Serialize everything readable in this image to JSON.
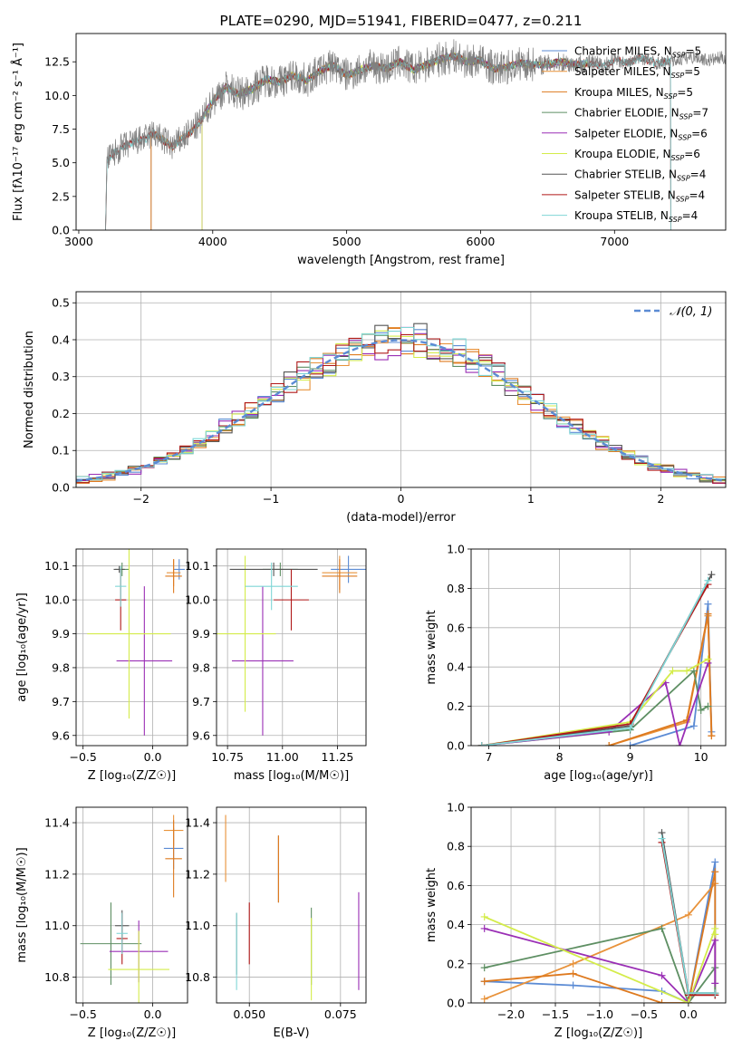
{
  "chart_data": [
    {
      "id": "spectrum",
      "type": "line",
      "title": "PLATE=0290, MJD=51941, FIBERID=0477, z=0.211",
      "xlabel": "wavelength [Angstrom, rest frame]",
      "ylabel": "Flux [fλ10⁻¹⁷ erg cm⁻² s⁻¹ Å⁻¹]",
      "xlim": [
        2980,
        7830
      ],
      "ylim": [
        0,
        14.6
      ],
      "xticks": [
        3000,
        4000,
        5000,
        6000,
        7000
      ],
      "yticks": [
        0.0,
        2.5,
        5.0,
        7.5,
        10.0,
        12.5
      ],
      "grid": false,
      "legend_position": "right",
      "data_series": {
        "name": "data",
        "color": "#808080",
        "x": [
          3200,
          3210,
          3300,
          3400,
          3500,
          3560,
          3700,
          3800,
          3900,
          4000,
          4100,
          4200,
          4300,
          4400,
          4500,
          4600,
          4700,
          4800,
          4900,
          5000,
          5100,
          5200,
          5300,
          5400,
          5500,
          5600,
          5700,
          5800,
          5900,
          6000,
          6100,
          6200,
          6300,
          6400,
          6500,
          6600,
          6700,
          6800,
          6900,
          7000,
          7100,
          7200,
          7300,
          7400,
          7500,
          7600,
          7700,
          7800
        ],
        "y": [
          0,
          5.2,
          6.0,
          6.5,
          6.8,
          7.2,
          6.2,
          7.0,
          7.9,
          9.6,
          10.6,
          10.1,
          10.5,
          11.2,
          11.0,
          11.5,
          11.1,
          11.8,
          12.3,
          11.5,
          11.9,
          12.2,
          12.0,
          12.5,
          11.9,
          12.3,
          12.7,
          12.9,
          12.5,
          12.6,
          12.0,
          12.1,
          12.4,
          12.3,
          12.3,
          12.5,
          12.3,
          12.4,
          12.2,
          12.6,
          12.4,
          12.8,
          12.4,
          12.5,
          12.7,
          12.9,
          12.6,
          12.8
        ]
      },
      "series": [
        {
          "name": "Chabrier MILES, N$_{SSP}$=5",
          "label_base": "Chabrier MILES, N",
          "label_n": "=5",
          "color": "#5b8bd4"
        },
        {
          "name": "Salpeter MILES, N$_{SSP}$=5",
          "label_base": "Salpeter MILES, N",
          "label_n": "=5",
          "color": "#e8923a"
        },
        {
          "name": "Kroupa MILES, N$_{SSP}$=5",
          "label_base": "Kroupa MILES, N",
          "label_n": "=5",
          "color": "#de7a1f"
        },
        {
          "name": "Chabrier ELODIE, N$_{SSP}$=7",
          "label_base": "Chabrier ELODIE, N",
          "label_n": "=7",
          "color": "#5e8f63"
        },
        {
          "name": "Salpeter ELODIE, N$_{SSP}$=6",
          "label_base": "Salpeter ELODIE, N",
          "label_n": "=6",
          "color": "#9a2fb5"
        },
        {
          "name": "Kroupa ELODIE, N$_{SSP}$=6",
          "label_base": "Kroupa ELODIE, N",
          "label_n": "=6",
          "color": "#d4ec4a"
        },
        {
          "name": "Chabrier STELIB, N$_{SSP}$=4",
          "label_base": "Chabrier STELIB, N",
          "label_n": "=4",
          "color": "#555555"
        },
        {
          "name": "Salpeter STELIB, N$_{SSP}$=4",
          "label_base": "Salpeter STELIB, N",
          "label_n": "=4",
          "color": "#b01818"
        },
        {
          "name": "Kroupa STELIB, N$_{SSP}$=4",
          "label_base": "Kroupa STELIB, N",
          "label_n": "=4",
          "color": "#7fd6d6"
        }
      ],
      "model_start_wavelength": [
        3540,
        3540,
        3540,
        3920,
        3920,
        3920,
        3200,
        3200,
        3200
      ],
      "model_end_wavelength": [
        6800,
        6800,
        6800,
        6800,
        6800,
        6800,
        7420,
        7420,
        7420
      ]
    },
    {
      "id": "residuals",
      "type": "step-histogram",
      "xlabel": "(data-model)/error",
      "ylabel": "Normed distribution",
      "xlim": [
        -2.5,
        2.5
      ],
      "ylim": [
        0,
        0.53
      ],
      "xticks": [
        -2,
        -1,
        0,
        1,
        2
      ],
      "yticks": [
        0.0,
        0.1,
        0.2,
        0.3,
        0.4,
        0.5
      ],
      "grid": true,
      "legend_position": "top-right",
      "reference": {
        "name": "𝒩(0, 1)",
        "style": "dashed",
        "color": "#5b8bd4"
      },
      "bin_width": 0.1
    },
    {
      "id": "age-vs-Z",
      "type": "errorbar",
      "xlabel": "Z [log₁₀(Z/Z☉)]",
      "ylabel": "age  [log₁₀(age/yr)]",
      "xlim": [
        -0.55,
        0.25
      ],
      "ylim": [
        9.57,
        10.15
      ],
      "xticks": [
        -0.5,
        0.0
      ],
      "yticks": [
        9.6,
        9.7,
        9.8,
        9.9,
        10.0,
        10.1
      ],
      "grid": true,
      "points": [
        {
          "series": 0,
          "x": 0.19,
          "xerr": 0.04,
          "y": 10.09,
          "yerr": 0.03
        },
        {
          "series": 1,
          "x": 0.15,
          "xerr": 0.05,
          "y": 10.08,
          "yerr": 0.04
        },
        {
          "series": 2,
          "x": 0.15,
          "xerr": 0.06,
          "y": 10.07,
          "yerr": 0.05
        },
        {
          "series": 3,
          "x": -0.22,
          "xerr": 0.05,
          "y": 10.09,
          "yerr": 0.02
        },
        {
          "series": 4,
          "x": -0.06,
          "xerr": 0.2,
          "y": 9.82,
          "yerr": 0.22
        },
        {
          "series": 5,
          "x": -0.17,
          "xerr": 0.3,
          "y": 9.9,
          "yerr": 0.25
        },
        {
          "series": 6,
          "x": -0.24,
          "xerr": 0.04,
          "y": 10.09,
          "yerr": 0.01
        },
        {
          "series": 7,
          "x": -0.23,
          "xerr": 0.04,
          "y": 10.0,
          "yerr": 0.09
        },
        {
          "series": 8,
          "x": -0.23,
          "xerr": 0.04,
          "y": 10.04,
          "yerr": 0.06
        }
      ]
    },
    {
      "id": "age-vs-mass",
      "type": "errorbar",
      "xlabel": "mass [log₁₀(M/M☉)]",
      "ylabel": "",
      "xlim": [
        10.7,
        11.38
      ],
      "ylim": [
        9.57,
        10.15
      ],
      "xticks": [
        10.75,
        11.0,
        11.25
      ],
      "yticks": [
        9.6,
        9.7,
        9.8,
        9.9,
        10.0,
        10.1
      ],
      "grid": true,
      "points": [
        {
          "series": 0,
          "x": 11.3,
          "xerr": 0.08,
          "y": 10.09,
          "yerr": 0.04
        },
        {
          "series": 1,
          "x": 11.26,
          "xerr": 0.08,
          "y": 10.08,
          "yerr": 0.05
        },
        {
          "series": 2,
          "x": 11.26,
          "xerr": 0.08,
          "y": 10.07,
          "yerr": 0.05
        },
        {
          "series": 3,
          "x": 10.99,
          "xerr": 0.08,
          "y": 10.09,
          "yerr": 0.02
        },
        {
          "series": 4,
          "x": 10.91,
          "xerr": 0.14,
          "y": 9.82,
          "yerr": 0.22
        },
        {
          "series": 5,
          "x": 10.83,
          "xerr": 0.14,
          "y": 9.9,
          "yerr": 0.23
        },
        {
          "series": 6,
          "x": 10.96,
          "xerr": 0.2,
          "y": 10.09,
          "yerr": 0.02
        },
        {
          "series": 7,
          "x": 11.04,
          "xerr": 0.08,
          "y": 10.0,
          "yerr": 0.09
        },
        {
          "series": 8,
          "x": 10.95,
          "xerr": 0.12,
          "y": 10.04,
          "yerr": 0.07
        }
      ]
    },
    {
      "id": "weight-vs-age",
      "type": "line",
      "xlabel": "age  [log₁₀(age/yr)]",
      "ylabel": "mass weight",
      "xlim": [
        6.75,
        10.35
      ],
      "ylim": [
        0,
        1.0
      ],
      "xticks": [
        7,
        8,
        9,
        10
      ],
      "yticks": [
        0.0,
        0.2,
        0.4,
        0.6,
        0.8,
        1.0
      ],
      "grid": true,
      "lines": [
        {
          "series": 0,
          "x": [
            9.0,
            9.9,
            10.1,
            10.15
          ],
          "y": [
            0.0,
            0.1,
            0.72,
            0.07
          ]
        },
        {
          "series": 1,
          "x": [
            8.7,
            9.8,
            10.1,
            10.15
          ],
          "y": [
            0.0,
            0.12,
            0.66,
            0.05
          ]
        },
        {
          "series": 2,
          "x": [
            8.7,
            9.8,
            10.1,
            10.15
          ],
          "y": [
            0.0,
            0.13,
            0.67,
            0.05
          ]
        },
        {
          "series": 3,
          "x": [
            6.9,
            9.0,
            9.9,
            10.0,
            10.1
          ],
          "y": [
            0.0,
            0.08,
            0.38,
            0.18,
            0.2
          ]
        },
        {
          "series": 4,
          "x": [
            6.9,
            8.7,
            9.5,
            9.7,
            10.1
          ],
          "y": [
            0.0,
            0.07,
            0.32,
            0.0,
            0.42
          ]
        },
        {
          "series": 5,
          "x": [
            6.9,
            9.0,
            9.6,
            9.8,
            10.1
          ],
          "y": [
            0.0,
            0.12,
            0.38,
            0.38,
            0.44
          ]
        },
        {
          "series": 6,
          "x": [
            6.9,
            9.0,
            10.15
          ],
          "y": [
            0.0,
            0.1,
            0.87
          ]
        },
        {
          "series": 7,
          "x": [
            6.9,
            9.0,
            10.1
          ],
          "y": [
            0.0,
            0.11,
            0.82
          ]
        },
        {
          "series": 8,
          "x": [
            6.9,
            9.0,
            10.1
          ],
          "y": [
            0.0,
            0.09,
            0.84
          ]
        }
      ]
    },
    {
      "id": "mass-vs-Z",
      "type": "errorbar",
      "xlabel": "Z [log₁₀(Z/Z☉)]",
      "ylabel": "mass [log₁₀(M/M☉)]",
      "xlim": [
        -0.55,
        0.25
      ],
      "ylim": [
        10.7,
        11.46
      ],
      "xticks": [
        -0.5,
        0.0
      ],
      "yticks": [
        10.8,
        11.0,
        11.2,
        11.4
      ],
      "grid": true,
      "points": [
        {
          "series": 0,
          "x": 0.15,
          "xerr": 0.07,
          "y": 11.3,
          "yerr": 0.08
        },
        {
          "series": 1,
          "x": 0.15,
          "xerr": 0.07,
          "y": 11.37,
          "yerr": 0.06
        },
        {
          "series": 2,
          "x": 0.15,
          "xerr": 0.06,
          "y": 11.26,
          "yerr": 0.15
        },
        {
          "series": 3,
          "x": -0.3,
          "xerr": 0.22,
          "y": 10.93,
          "yerr": 0.16
        },
        {
          "series": 4,
          "x": -0.1,
          "xerr": 0.21,
          "y": 10.9,
          "yerr": 0.12
        },
        {
          "series": 5,
          "x": -0.1,
          "xerr": 0.22,
          "y": 10.83,
          "yerr": 0.15
        },
        {
          "series": 6,
          "x": -0.22,
          "xerr": 0.05,
          "y": 11.0,
          "yerr": 0.06
        },
        {
          "series": 7,
          "x": -0.22,
          "xerr": 0.04,
          "y": 10.95,
          "yerr": 0.1
        },
        {
          "series": 8,
          "x": -0.22,
          "xerr": 0.04,
          "y": 10.97,
          "yerr": 0.08
        }
      ]
    },
    {
      "id": "mass-vs-ebv",
      "type": "errorbar",
      "xlabel": "E(B-V)",
      "ylabel": "",
      "xlim": [
        0.041,
        0.082
      ],
      "ylim": [
        10.7,
        11.46
      ],
      "xticks": [
        0.05,
        0.075
      ],
      "yticks": [
        10.8,
        11.0,
        11.2,
        11.4
      ],
      "grid": true,
      "points": [
        {
          "series": 0,
          "x": 0.058,
          "xerr": 0,
          "y": 11.22,
          "yerr": 0.13
        },
        {
          "series": 1,
          "x": 0.058,
          "xerr": 0,
          "y": 11.22,
          "yerr": 0.13
        },
        {
          "series": 2,
          "x": 0.058,
          "xerr": 0,
          "y": 11.22,
          "yerr": 0.13
        },
        {
          "series": 3,
          "x": 0.067,
          "xerr": 0,
          "y": 10.92,
          "yerr": 0.15
        },
        {
          "series": 4,
          "x": 0.08,
          "xerr": 0,
          "y": 10.94,
          "yerr": 0.19
        },
        {
          "series": 5,
          "x": 0.067,
          "xerr": 0,
          "y": 10.87,
          "yerr": 0.16
        },
        {
          "series": 6,
          "x": 0.0465,
          "xerr": 0,
          "y": 10.93,
          "yerr": 0.12
        },
        {
          "series": 7,
          "x": 0.05,
          "xerr": 0,
          "y": 10.97,
          "yerr": 0.12
        },
        {
          "series": 8,
          "x": 0.0465,
          "xerr": 0,
          "y": 10.9,
          "yerr": 0.15
        },
        {
          "series": 1,
          "x": 0.0435,
          "xerr": 0,
          "y": 11.3,
          "yerr": 0.13
        }
      ]
    },
    {
      "id": "weight-vs-Z",
      "type": "line",
      "xlabel": "Z [log₁₀(Z/Z☉)]",
      "ylabel": "mass weight",
      "xlim": [
        -2.45,
        0.42
      ],
      "ylim": [
        0,
        1.0
      ],
      "xticks": [
        -2.0,
        -1.5,
        -1.0,
        -0.5,
        0.0
      ],
      "yticks": [
        0.0,
        0.2,
        0.4,
        0.6,
        0.8,
        1.0
      ],
      "grid": true,
      "lines": [
        {
          "series": 0,
          "x": [
            -2.3,
            -1.3,
            -0.3,
            0.0,
            0.3,
            0.3
          ],
          "y": [
            0.11,
            0.09,
            0.06,
            0.0,
            0.72,
            0.04
          ]
        },
        {
          "series": 1,
          "x": [
            -2.3,
            -1.3,
            0.0,
            0.3
          ],
          "y": [
            0.02,
            0.2,
            0.45,
            0.61
          ]
        },
        {
          "series": 2,
          "x": [
            -2.3,
            -1.3,
            -0.3,
            0.0,
            0.3,
            0.3
          ],
          "y": [
            0.11,
            0.15,
            0.0,
            0.0,
            0.67,
            0.05
          ]
        },
        {
          "series": 3,
          "x": [
            -2.3,
            -0.3,
            0.0,
            0.3,
            0.3
          ],
          "y": [
            0.18,
            0.38,
            0.0,
            0.18,
            0.04
          ]
        },
        {
          "series": 4,
          "x": [
            -2.3,
            -0.3,
            0.0,
            0.3,
            0.3
          ],
          "y": [
            0.38,
            0.14,
            0.0,
            0.32,
            0.1
          ]
        },
        {
          "series": 5,
          "x": [
            -2.3,
            0.0,
            0.3,
            0.3
          ],
          "y": [
            0.44,
            0.0,
            0.38,
            0.35
          ]
        },
        {
          "series": 6,
          "x": [
            -0.3,
            0.0,
            0.3
          ],
          "y": [
            0.87,
            0.05,
            0.05
          ]
        },
        {
          "series": 7,
          "x": [
            -0.3,
            0.0,
            0.3
          ],
          "y": [
            0.82,
            0.04,
            0.04
          ]
        },
        {
          "series": 8,
          "x": [
            -0.3,
            0.0,
            0.3
          ],
          "y": [
            0.84,
            0.05,
            0.05
          ]
        }
      ]
    }
  ]
}
